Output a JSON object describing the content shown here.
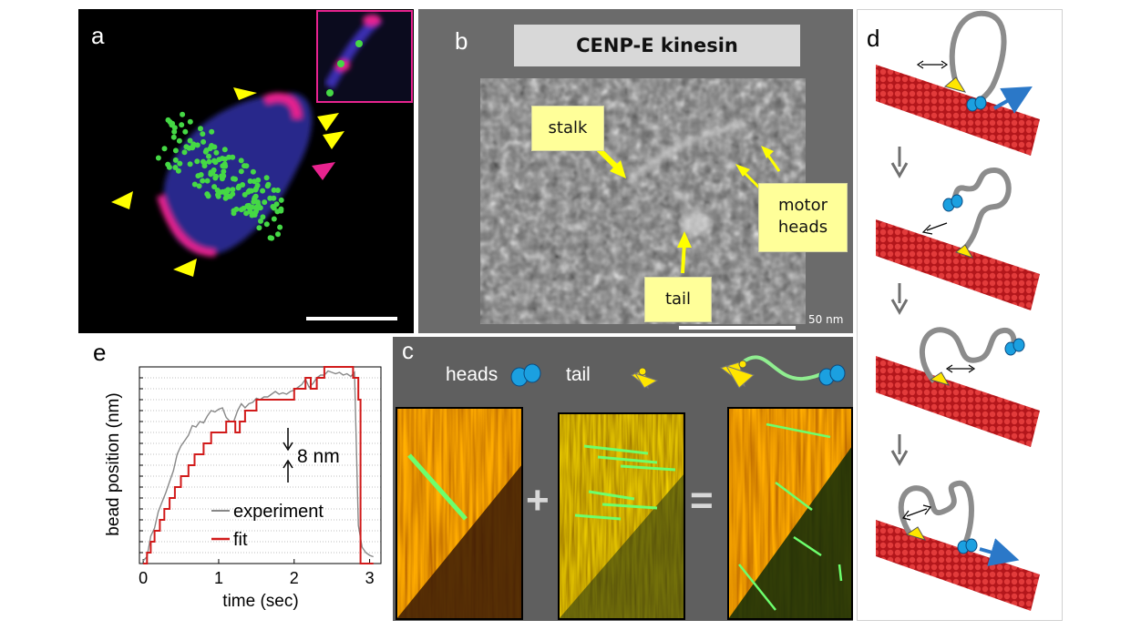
{
  "panel_a": {
    "letter": "a"
  },
  "panel_b": {
    "letter": "b",
    "title": "CENP-E kinesin",
    "labels": {
      "stalk": "stalk",
      "motor_heads_1": "motor",
      "motor_heads_2": "heads",
      "tail": "tail"
    },
    "scale_bar": "50 nm"
  },
  "panel_c": {
    "letter": "c",
    "labels": {
      "heads": "heads",
      "tail": "tail",
      "plus": "+",
      "equals": "="
    }
  },
  "panel_d": {
    "letter": "d"
  },
  "panel_e": {
    "letter": "e",
    "step_label": "8 nm"
  },
  "colors": {
    "yellow": "#ffff00",
    "magenta": "#e8238f",
    "green": "#45d845",
    "microtubule": "#d42a2a",
    "tether": "#8c8c8c",
    "motor": "#29a6e0",
    "fit": "#d11a1a",
    "panel_gray": "#6b6b6b"
  },
  "chart_data": {
    "type": "line",
    "title": "",
    "xlabel": "time (sec)",
    "ylabel": "bead position (nm)",
    "xlim": [
      -0.05,
      3.15
    ],
    "ylim": [
      0,
      144
    ],
    "xticks": [
      0,
      1,
      2,
      3
    ],
    "grid": true,
    "legend_position": "bottom-right",
    "series": [
      {
        "name": "experiment",
        "color": "#888888",
        "x": [
          0,
          0.05,
          0.1,
          0.15,
          0.2,
          0.25,
          0.3,
          0.35,
          0.4,
          0.45,
          0.5,
          0.55,
          0.6,
          0.65,
          0.7,
          0.75,
          0.8,
          0.85,
          0.9,
          0.95,
          1.0,
          1.05,
          1.1,
          1.15,
          1.2,
          1.25,
          1.3,
          1.35,
          1.4,
          1.45,
          1.5,
          1.55,
          1.6,
          1.65,
          1.7,
          1.75,
          1.8,
          1.85,
          1.9,
          1.95,
          2.0,
          2.05,
          2.1,
          2.15,
          2.2,
          2.25,
          2.3,
          2.35,
          2.4,
          2.45,
          2.5,
          2.55,
          2.6,
          2.65,
          2.7,
          2.75,
          2.8,
          2.85,
          2.9,
          2.95,
          3.0,
          3.05
        ],
        "y": [
          2,
          5,
          20,
          26,
          38,
          45,
          52,
          60,
          68,
          80,
          86,
          90,
          94,
          101,
          100,
          104,
          103,
          108,
          112,
          111,
          113,
          114,
          107,
          104,
          104,
          112,
          117,
          114,
          117,
          118,
          121,
          120,
          122,
          122,
          124,
          126,
          124,
          125,
          124,
          126,
          127,
          129,
          131,
          135,
          129,
          132,
          136,
          138,
          138,
          141,
          140,
          139,
          140,
          138,
          139,
          137,
          140,
          28,
          12,
          8,
          6,
          5
        ]
      },
      {
        "name": "fit",
        "color": "#d11a1a",
        "x": [
          0,
          0.05,
          0.05,
          0.1,
          0.1,
          0.15,
          0.15,
          0.22,
          0.22,
          0.28,
          0.28,
          0.35,
          0.35,
          0.42,
          0.42,
          0.5,
          0.5,
          0.6,
          0.6,
          0.68,
          0.68,
          0.8,
          0.8,
          0.9,
          0.9,
          1.1,
          1.1,
          1.22,
          1.22,
          1.28,
          1.28,
          1.35,
          1.35,
          1.5,
          1.5,
          1.65,
          1.65,
          1.8,
          1.8,
          2.0,
          2.0,
          2.15,
          2.15,
          2.22,
          2.22,
          2.3,
          2.3,
          2.4,
          2.4,
          2.78,
          2.78,
          2.85,
          2.85,
          2.88,
          2.88,
          3.05
        ],
        "y": [
          0,
          0,
          8,
          8,
          16,
          16,
          24,
          24,
          32,
          32,
          40,
          40,
          48,
          48,
          56,
          56,
          64,
          64,
          72,
          72,
          80,
          80,
          88,
          88,
          96,
          96,
          104,
          104,
          96,
          96,
          104,
          104,
          112,
          112,
          120,
          120,
          120,
          120,
          120,
          120,
          128,
          128,
          136,
          136,
          128,
          128,
          136,
          136,
          144,
          144,
          136,
          136,
          120,
          120,
          0,
          0
        ]
      }
    ],
    "annotations": [
      "8 nm"
    ]
  }
}
